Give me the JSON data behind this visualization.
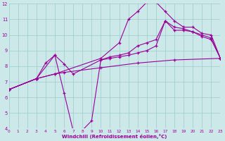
{
  "bg_color": "#cce8e8",
  "grid_color": "#99cccc",
  "line_color": "#990099",
  "xlabel": "Windchill (Refroidissement éolien,°C)",
  "xlim": [
    0,
    23
  ],
  "ylim": [
    4,
    12
  ],
  "xticks": [
    0,
    1,
    2,
    3,
    4,
    5,
    6,
    7,
    8,
    9,
    10,
    11,
    12,
    13,
    14,
    15,
    16,
    17,
    18,
    19,
    20,
    21,
    22,
    23
  ],
  "yticks": [
    4,
    5,
    6,
    7,
    8,
    9,
    10,
    11,
    12
  ],
  "line_straight_x": [
    0,
    3,
    5,
    6,
    10,
    14,
    18,
    23
  ],
  "line_straight_y": [
    6.5,
    7.2,
    7.5,
    7.6,
    7.9,
    8.2,
    8.4,
    8.5
  ],
  "line_big_arch_x": [
    0,
    3,
    5,
    10,
    12,
    13,
    14,
    15,
    16,
    17,
    18,
    19,
    20,
    21,
    22,
    23
  ],
  "line_big_arch_y": [
    6.5,
    7.2,
    7.5,
    8.5,
    9.5,
    11.0,
    11.5,
    12.1,
    12.1,
    11.5,
    10.9,
    10.5,
    10.5,
    10.1,
    10.0,
    8.5
  ],
  "line_dip_x": [
    0,
    3,
    4,
    5,
    6,
    7,
    8,
    9,
    10,
    11,
    12,
    13,
    14,
    15,
    16,
    17,
    18,
    19,
    20,
    21,
    22,
    23
  ],
  "line_dip_y": [
    6.5,
    7.2,
    8.2,
    8.7,
    6.3,
    3.85,
    3.9,
    4.5,
    8.4,
    8.6,
    8.7,
    8.85,
    9.3,
    9.5,
    9.7,
    10.9,
    10.5,
    10.4,
    10.2,
    10.0,
    9.8,
    8.5
  ],
  "line_mid_arch_x": [
    0,
    3,
    5,
    6,
    7,
    10,
    11,
    12,
    13,
    14,
    15,
    16,
    17,
    18,
    19,
    20,
    21,
    22,
    23
  ],
  "line_mid_arch_y": [
    6.5,
    7.2,
    8.7,
    8.15,
    7.5,
    8.4,
    8.5,
    8.6,
    8.7,
    8.85,
    9.0,
    9.3,
    10.9,
    10.3,
    10.3,
    10.2,
    9.9,
    9.7,
    8.5
  ]
}
